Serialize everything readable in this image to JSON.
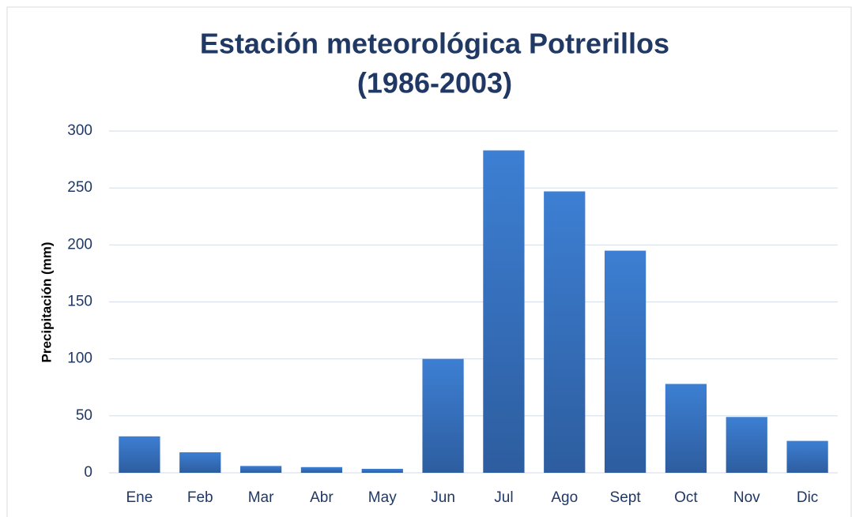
{
  "chart_data": {
    "type": "bar",
    "title": [
      "Estación meteorológica Potrerillos",
      "(1986-2003)"
    ],
    "y_label": "Precipitación (mm)",
    "categories": [
      "Ene",
      "Feb",
      "Mar",
      "Abr",
      "May",
      "Jun",
      "Jul",
      "Ago",
      "Sept",
      "Oct",
      "Nov",
      "Dic"
    ],
    "values": [
      32,
      18,
      6,
      5,
      3.5,
      100,
      283,
      247,
      195,
      78,
      49,
      28
    ],
    "color": "#3a78c9",
    "ylim": [
      0,
      300
    ],
    "yticks": [
      0,
      50,
      100,
      150,
      200,
      250,
      300
    ],
    "grid": true
  }
}
